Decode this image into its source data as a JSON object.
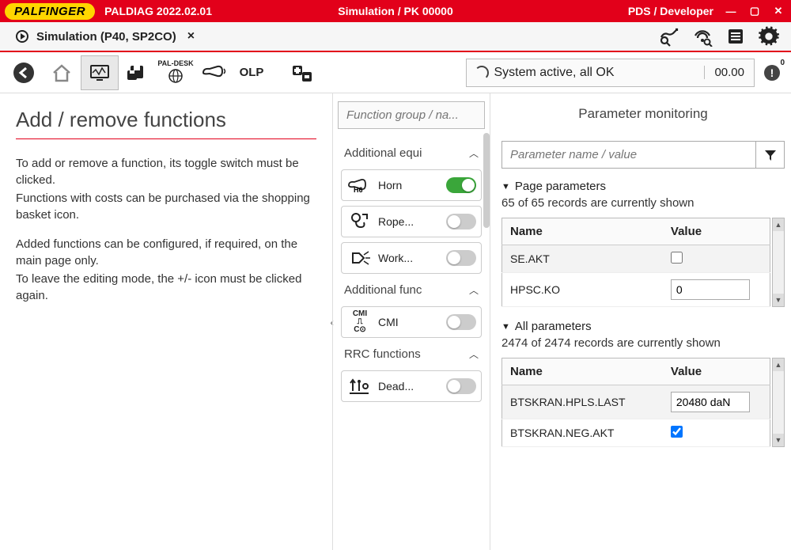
{
  "titlebar": {
    "brand": "PALFINGER",
    "app": "PALDIAG 2022.02.01",
    "center": "Simulation / PK 00000",
    "right": "PDS / Developer"
  },
  "tab": {
    "label": "Simulation (P40, SP2CO)"
  },
  "toolbar": {
    "paldesk": "PAL-DESK",
    "olp": "OLP",
    "status_text": "System active, all OK",
    "status_value": "00.00",
    "error_badge": "0"
  },
  "left": {
    "heading": "Add / remove functions",
    "p1": "To add or remove a function, its toggle switch must be clicked.",
    "p2": "Functions with costs can be purchased via the shopping basket icon.",
    "p3": "Added functions can be configured, if required, on the main page only.",
    "p4": "To leave the editing mode, the +/- icon must be clicked again."
  },
  "mid": {
    "search_placeholder": "Function group / na...",
    "groups": [
      {
        "title": "Additional equi",
        "items": [
          {
            "icon": "H6",
            "label": "Horn",
            "on": true
          },
          {
            "icon": "rope",
            "label": "Rope...",
            "on": false
          },
          {
            "icon": "work",
            "label": "Work...",
            "on": false
          }
        ]
      },
      {
        "title": "Additional func",
        "items": [
          {
            "icon": "CMI",
            "label": "CMI",
            "on": false
          }
        ]
      },
      {
        "title": "RRC functions",
        "items": [
          {
            "icon": "dead",
            "label": "Dead...",
            "on": false
          }
        ]
      }
    ]
  },
  "right": {
    "title": "Parameter monitoring",
    "filter_placeholder": "Parameter name / value",
    "page_section": "Page parameters",
    "page_info": "65 of 65 records are currently shown",
    "col_name": "Name",
    "col_value": "Value",
    "page_rows": [
      {
        "name": "SE.AKT",
        "type": "check",
        "value": false
      },
      {
        "name": "HPSC.KO",
        "type": "text",
        "value": "0"
      }
    ],
    "all_section": "All parameters",
    "all_info": "2474 of 2474 records are currently shown",
    "all_rows": [
      {
        "name": "BTSKRAN.HPLS.LAST",
        "type": "text",
        "value": "20480 daN"
      },
      {
        "name": "BTSKRAN.NEG.AKT",
        "type": "check",
        "value": true
      }
    ]
  },
  "colors": {
    "brand_red": "#e2001a",
    "brand_yellow": "#ffd600",
    "toggle_on": "#3aa63a",
    "toggle_off": "#cccccc"
  }
}
